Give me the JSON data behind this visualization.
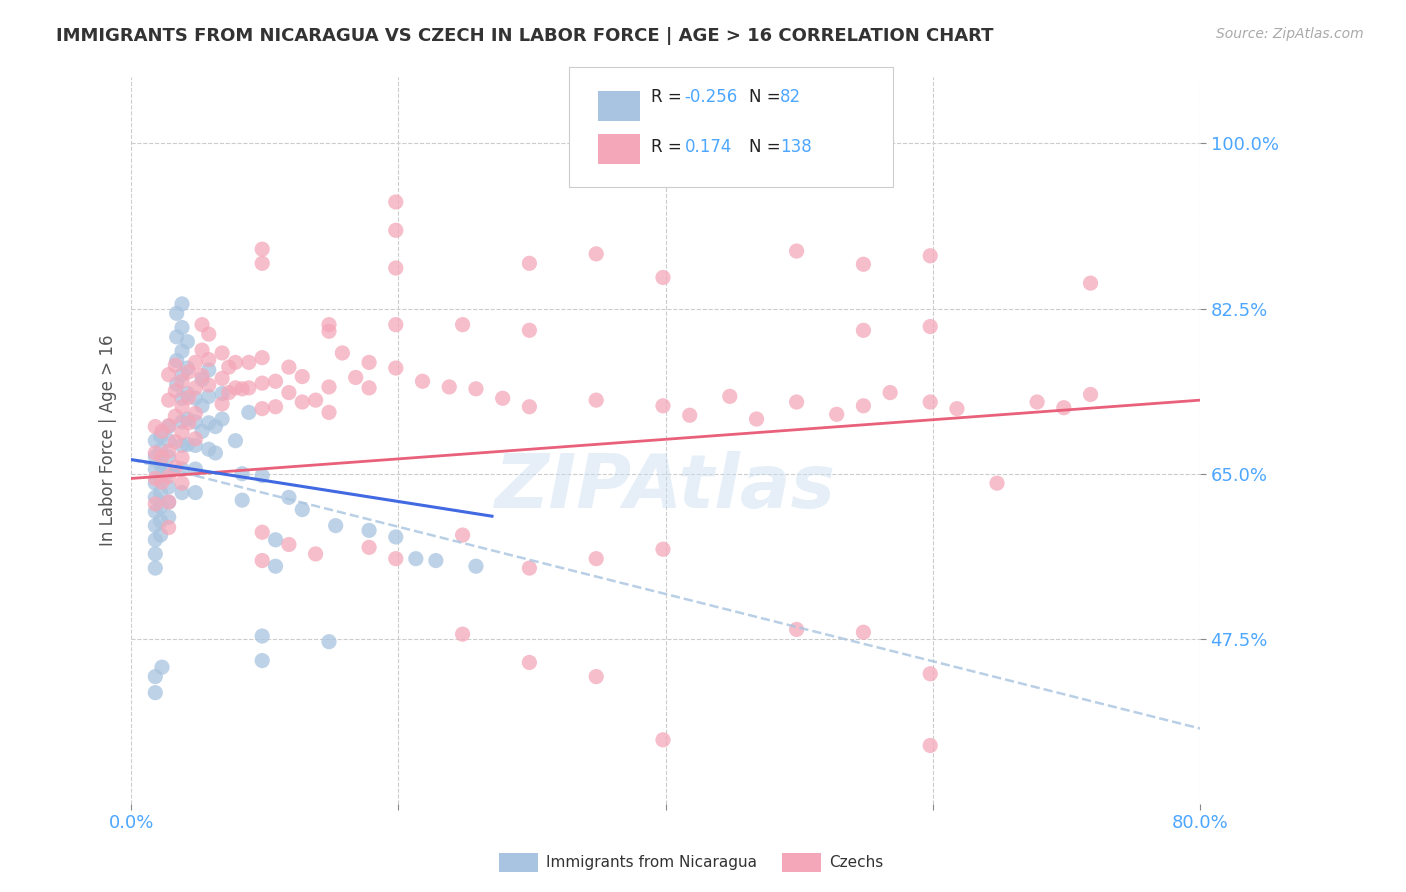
{
  "title": "IMMIGRANTS FROM NICARAGUA VS CZECH IN LABOR FORCE | AGE > 16 CORRELATION CHART",
  "source": "Source: ZipAtlas.com",
  "ylabel": "In Labor Force | Age > 16",
  "xlim": [
    0.0,
    0.8
  ],
  "ylim": [
    0.3,
    1.07
  ],
  "ytick_positions": [
    0.475,
    0.65,
    0.825,
    1.0
  ],
  "yticklabels": [
    "47.5%",
    "65.0%",
    "82.5%",
    "100.0%"
  ],
  "legend_blue_label": "Immigrants from Nicaragua",
  "legend_pink_label": "Czechs",
  "R_blue": "-0.256",
  "N_blue": "82",
  "R_pink": "0.174",
  "N_pink": "138",
  "blue_color": "#a8c4e0",
  "pink_color": "#f4a7b9",
  "blue_line_color": "#4169e1",
  "pink_line_color": "#e8607a",
  "blue_dash_color": "#a8c4e0",
  "watermark": "ZIPAtlas",
  "grid_color": "#cccccc",
  "blue_scatter": [
    [
      0.018,
      0.685
    ],
    [
      0.018,
      0.668
    ],
    [
      0.018,
      0.655
    ],
    [
      0.018,
      0.64
    ],
    [
      0.018,
      0.625
    ],
    [
      0.018,
      0.61
    ],
    [
      0.018,
      0.595
    ],
    [
      0.018,
      0.58
    ],
    [
      0.018,
      0.565
    ],
    [
      0.018,
      0.55
    ],
    [
      0.022,
      0.69
    ],
    [
      0.022,
      0.675
    ],
    [
      0.022,
      0.66
    ],
    [
      0.022,
      0.645
    ],
    [
      0.022,
      0.63
    ],
    [
      0.022,
      0.615
    ],
    [
      0.022,
      0.6
    ],
    [
      0.022,
      0.585
    ],
    [
      0.028,
      0.7
    ],
    [
      0.028,
      0.685
    ],
    [
      0.028,
      0.668
    ],
    [
      0.028,
      0.652
    ],
    [
      0.028,
      0.636
    ],
    [
      0.028,
      0.62
    ],
    [
      0.028,
      0.604
    ],
    [
      0.034,
      0.82
    ],
    [
      0.034,
      0.795
    ],
    [
      0.034,
      0.77
    ],
    [
      0.034,
      0.745
    ],
    [
      0.038,
      0.83
    ],
    [
      0.038,
      0.805
    ],
    [
      0.038,
      0.78
    ],
    [
      0.038,
      0.755
    ],
    [
      0.038,
      0.73
    ],
    [
      0.038,
      0.705
    ],
    [
      0.038,
      0.68
    ],
    [
      0.038,
      0.655
    ],
    [
      0.038,
      0.63
    ],
    [
      0.042,
      0.79
    ],
    [
      0.042,
      0.762
    ],
    [
      0.042,
      0.735
    ],
    [
      0.042,
      0.708
    ],
    [
      0.042,
      0.681
    ],
    [
      0.048,
      0.73
    ],
    [
      0.048,
      0.705
    ],
    [
      0.048,
      0.68
    ],
    [
      0.048,
      0.655
    ],
    [
      0.048,
      0.63
    ],
    [
      0.053,
      0.75
    ],
    [
      0.053,
      0.722
    ],
    [
      0.053,
      0.695
    ],
    [
      0.058,
      0.76
    ],
    [
      0.058,
      0.732
    ],
    [
      0.058,
      0.704
    ],
    [
      0.058,
      0.676
    ],
    [
      0.063,
      0.7
    ],
    [
      0.063,
      0.672
    ],
    [
      0.068,
      0.735
    ],
    [
      0.068,
      0.708
    ],
    [
      0.078,
      0.685
    ],
    [
      0.083,
      0.65
    ],
    [
      0.083,
      0.622
    ],
    [
      0.088,
      0.715
    ],
    [
      0.098,
      0.648
    ],
    [
      0.108,
      0.58
    ],
    [
      0.108,
      0.552
    ],
    [
      0.118,
      0.625
    ],
    [
      0.128,
      0.612
    ],
    [
      0.153,
      0.595
    ],
    [
      0.178,
      0.59
    ],
    [
      0.198,
      0.583
    ],
    [
      0.213,
      0.56
    ],
    [
      0.228,
      0.558
    ],
    [
      0.258,
      0.552
    ],
    [
      0.098,
      0.478
    ],
    [
      0.098,
      0.452
    ],
    [
      0.148,
      0.472
    ],
    [
      0.018,
      0.435
    ],
    [
      0.018,
      0.418
    ],
    [
      0.023,
      0.445
    ]
  ],
  "pink_scatter": [
    [
      0.018,
      0.7
    ],
    [
      0.018,
      0.672
    ],
    [
      0.018,
      0.645
    ],
    [
      0.018,
      0.618
    ],
    [
      0.023,
      0.695
    ],
    [
      0.023,
      0.668
    ],
    [
      0.023,
      0.641
    ],
    [
      0.028,
      0.755
    ],
    [
      0.028,
      0.728
    ],
    [
      0.028,
      0.701
    ],
    [
      0.028,
      0.674
    ],
    [
      0.028,
      0.647
    ],
    [
      0.028,
      0.62
    ],
    [
      0.028,
      0.593
    ],
    [
      0.033,
      0.765
    ],
    [
      0.033,
      0.738
    ],
    [
      0.033,
      0.711
    ],
    [
      0.033,
      0.684
    ],
    [
      0.033,
      0.657
    ],
    [
      0.038,
      0.748
    ],
    [
      0.038,
      0.721
    ],
    [
      0.038,
      0.694
    ],
    [
      0.038,
      0.667
    ],
    [
      0.038,
      0.64
    ],
    [
      0.043,
      0.758
    ],
    [
      0.043,
      0.731
    ],
    [
      0.043,
      0.704
    ],
    [
      0.048,
      0.768
    ],
    [
      0.048,
      0.741
    ],
    [
      0.048,
      0.714
    ],
    [
      0.048,
      0.687
    ],
    [
      0.053,
      0.808
    ],
    [
      0.053,
      0.781
    ],
    [
      0.053,
      0.754
    ],
    [
      0.058,
      0.798
    ],
    [
      0.058,
      0.771
    ],
    [
      0.058,
      0.744
    ],
    [
      0.068,
      0.778
    ],
    [
      0.068,
      0.751
    ],
    [
      0.068,
      0.724
    ],
    [
      0.073,
      0.763
    ],
    [
      0.073,
      0.736
    ],
    [
      0.078,
      0.768
    ],
    [
      0.078,
      0.741
    ],
    [
      0.083,
      0.74
    ],
    [
      0.088,
      0.768
    ],
    [
      0.088,
      0.741
    ],
    [
      0.098,
      0.773
    ],
    [
      0.098,
      0.746
    ],
    [
      0.098,
      0.719
    ],
    [
      0.108,
      0.748
    ],
    [
      0.108,
      0.721
    ],
    [
      0.118,
      0.763
    ],
    [
      0.118,
      0.736
    ],
    [
      0.128,
      0.753
    ],
    [
      0.128,
      0.726
    ],
    [
      0.138,
      0.728
    ],
    [
      0.148,
      0.742
    ],
    [
      0.148,
      0.715
    ],
    [
      0.158,
      0.778
    ],
    [
      0.168,
      0.752
    ],
    [
      0.178,
      0.768
    ],
    [
      0.178,
      0.741
    ],
    [
      0.198,
      0.762
    ],
    [
      0.218,
      0.748
    ],
    [
      0.238,
      0.742
    ],
    [
      0.258,
      0.74
    ],
    [
      0.278,
      0.73
    ],
    [
      0.298,
      0.721
    ],
    [
      0.348,
      0.728
    ],
    [
      0.398,
      0.722
    ],
    [
      0.418,
      0.712
    ],
    [
      0.448,
      0.732
    ],
    [
      0.468,
      0.708
    ],
    [
      0.498,
      0.726
    ],
    [
      0.528,
      0.713
    ],
    [
      0.548,
      0.722
    ],
    [
      0.568,
      0.736
    ],
    [
      0.598,
      0.726
    ],
    [
      0.618,
      0.719
    ],
    [
      0.648,
      0.64
    ],
    [
      0.678,
      0.726
    ],
    [
      0.698,
      0.72
    ],
    [
      0.718,
      0.734
    ],
    [
      0.098,
      0.888
    ],
    [
      0.098,
      0.873
    ],
    [
      0.198,
      0.868
    ],
    [
      0.198,
      0.908
    ],
    [
      0.198,
      0.938
    ],
    [
      0.298,
      0.873
    ],
    [
      0.348,
      0.883
    ],
    [
      0.398,
      0.858
    ],
    [
      0.498,
      0.886
    ],
    [
      0.548,
      0.872
    ],
    [
      0.598,
      0.881
    ],
    [
      0.718,
      0.852
    ],
    [
      0.148,
      0.808
    ],
    [
      0.148,
      0.801
    ],
    [
      0.198,
      0.808
    ],
    [
      0.248,
      0.808
    ],
    [
      0.298,
      0.802
    ],
    [
      0.548,
      0.802
    ],
    [
      0.598,
      0.806
    ],
    [
      0.098,
      0.588
    ],
    [
      0.098,
      0.558
    ],
    [
      0.118,
      0.575
    ],
    [
      0.138,
      0.565
    ],
    [
      0.178,
      0.572
    ],
    [
      0.198,
      0.56
    ],
    [
      0.248,
      0.585
    ],
    [
      0.298,
      0.55
    ],
    [
      0.348,
      0.56
    ],
    [
      0.398,
      0.57
    ],
    [
      0.498,
      0.485
    ],
    [
      0.548,
      0.482
    ],
    [
      0.598,
      0.438
    ],
    [
      0.598,
      0.362
    ],
    [
      0.248,
      0.48
    ],
    [
      0.298,
      0.45
    ],
    [
      0.348,
      0.435
    ],
    [
      0.398,
      0.368
    ]
  ],
  "blue_trendline": {
    "x_start": 0.0,
    "x_end": 0.27,
    "y_start": 0.665,
    "y_end": 0.605
  },
  "blue_dash_trendline": {
    "x_start": 0.0,
    "x_end": 0.8,
    "y_start": 0.665,
    "y_end": 0.38
  },
  "pink_trendline": {
    "x_start": 0.0,
    "x_end": 0.8,
    "y_start": 0.645,
    "y_end": 0.728
  }
}
